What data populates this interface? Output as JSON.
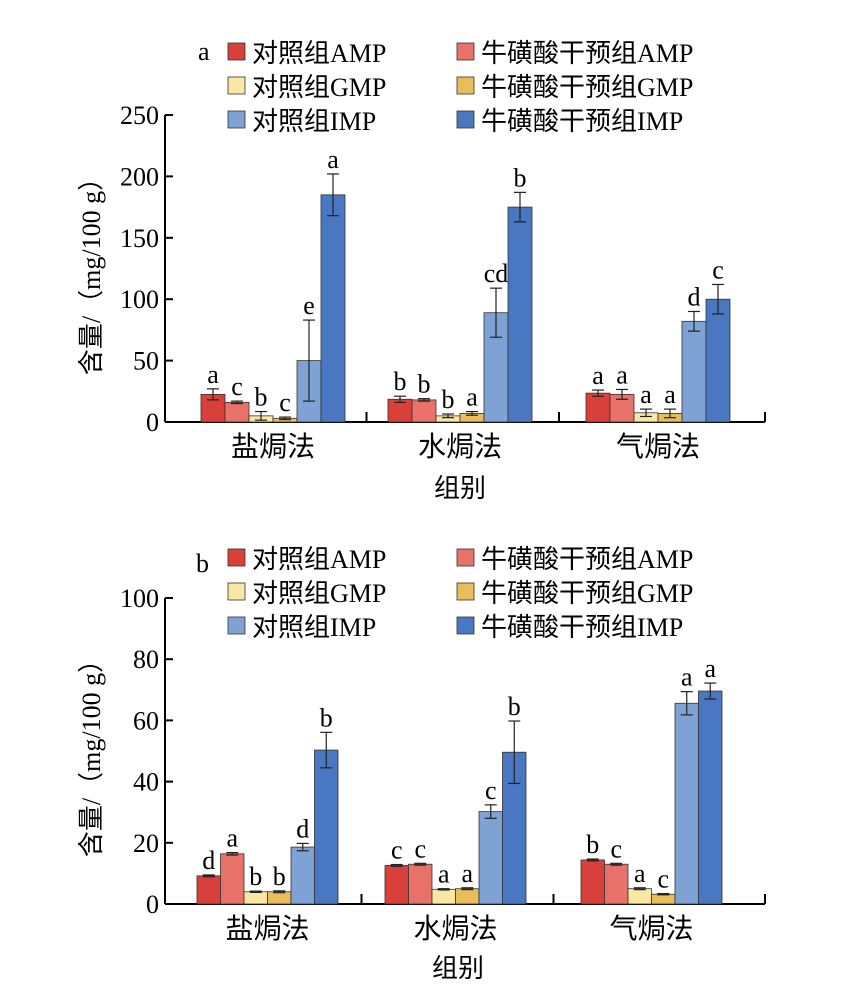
{
  "colors": {
    "control_amp": "#d9403a",
    "taurine_amp": "#e8716a",
    "control_gmp": "#fbe7a4",
    "taurine_gmp": "#e8bd5a",
    "control_imp": "#7fa2d4",
    "taurine_imp": "#4a77c1"
  },
  "chart_data": [
    {
      "type": "bar",
      "panel_label": "a",
      "ylabel": "含量/（mg/100 g）",
      "xlabel": "组别",
      "categories": [
        "盐焗法",
        "水焗法",
        "气焗法"
      ],
      "ylim": [
        0,
        250
      ],
      "yticks": [
        "0",
        "50",
        "100",
        "150",
        "200",
        "250"
      ],
      "legend": "top",
      "series": [
        {
          "name": "对照组AMP",
          "color_key": "control_amp",
          "values": [
            22.5,
            18.5,
            23.5
          ],
          "errors": [
            4.5,
            2.5,
            2.5
          ],
          "letters": [
            "a",
            "b",
            "a"
          ]
        },
        {
          "name": "牛磺酸干预组AMP",
          "color_key": "taurine_amp",
          "values": [
            16,
            18,
            22.5
          ],
          "errors": [
            1,
            1,
            4
          ],
          "letters": [
            "c",
            "b",
            "a"
          ]
        },
        {
          "name": "对照组GMP",
          "color_key": "control_gmp",
          "values": [
            5,
            5,
            7.5
          ],
          "errors": [
            3.5,
            1.5,
            3
          ],
          "letters": [
            "b",
            "b",
            "a"
          ]
        },
        {
          "name": "牛磺酸干预组GMP",
          "color_key": "taurine_gmp",
          "values": [
            3,
            7,
            7
          ],
          "errors": [
            1,
            1.5,
            3.5
          ],
          "letters": [
            "c",
            "a",
            "a"
          ]
        },
        {
          "name": "对照组IMP",
          "color_key": "control_imp",
          "values": [
            50,
            89,
            82
          ],
          "errors": [
            33,
            20,
            8
          ],
          "letters": [
            "e",
            "cd",
            "d"
          ]
        },
        {
          "name": "牛磺酸干预组IMP",
          "color_key": "taurine_imp",
          "values": [
            185,
            175,
            100
          ],
          "errors": [
            17,
            12,
            12
          ],
          "letters": [
            "a",
            "b",
            "c"
          ]
        }
      ]
    },
    {
      "type": "bar",
      "panel_label": "b",
      "ylabel": "含量/（mg/100 g）",
      "xlabel": "组别",
      "categories": [
        "盐焗法",
        "水焗法",
        "气焗法"
      ],
      "ylim": [
        0,
        100
      ],
      "yticks": [
        "0",
        "20",
        "40",
        "60",
        "80",
        "100"
      ],
      "legend": "top",
      "series": [
        {
          "name": "对照组AMP",
          "color_key": "control_amp",
          "values": [
            9.2,
            12.6,
            14.4
          ],
          "errors": [
            0.3,
            0.3,
            0.3
          ],
          "letters": [
            "d",
            "c",
            "b"
          ]
        },
        {
          "name": "牛磺酸干预组AMP",
          "color_key": "taurine_amp",
          "values": [
            16.4,
            13.0,
            13.0
          ],
          "errors": [
            0.4,
            0.3,
            0.3
          ],
          "letters": [
            "a",
            "c",
            "c"
          ]
        },
        {
          "name": "对照组GMP",
          "color_key": "control_gmp",
          "values": [
            4.0,
            4.8,
            5.0
          ],
          "errors": [
            0.2,
            0.2,
            0.3
          ],
          "letters": [
            "b",
            "a",
            "a"
          ]
        },
        {
          "name": "牛磺酸干预组GMP",
          "color_key": "taurine_gmp",
          "values": [
            4.0,
            5.0,
            3.2
          ],
          "errors": [
            0.3,
            0.3,
            0.2
          ],
          "letters": [
            "b",
            "a",
            "c"
          ]
        },
        {
          "name": "对照组IMP",
          "color_key": "control_imp",
          "values": [
            18.6,
            30.2,
            65.6
          ],
          "errors": [
            1.2,
            2.2,
            3.8
          ],
          "letters": [
            "d",
            "c",
            "a"
          ]
        },
        {
          "name": "牛磺酸干预组IMP",
          "color_key": "taurine_imp",
          "values": [
            50.3,
            49.6,
            69.6
          ],
          "errors": [
            5.8,
            10.2,
            2.6
          ],
          "letters": [
            "b",
            "b",
            "a"
          ]
        }
      ]
    }
  ]
}
